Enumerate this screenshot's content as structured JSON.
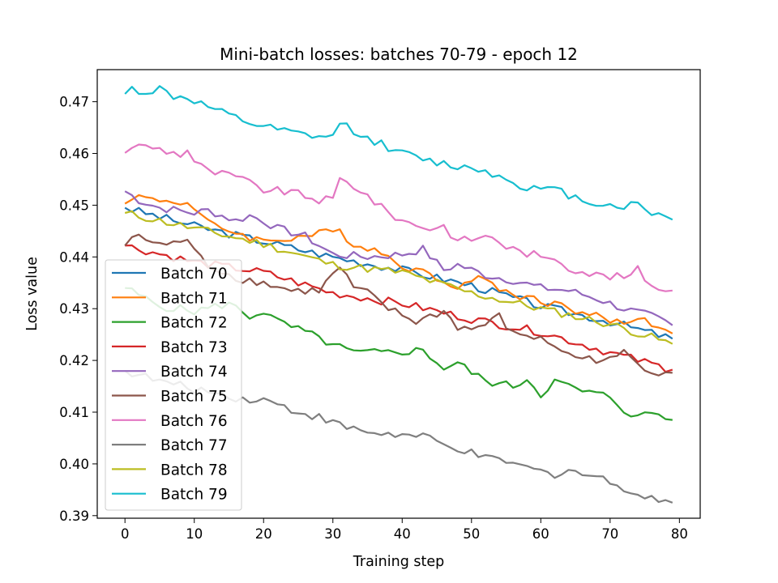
{
  "chart_data": {
    "type": "line",
    "title": "Mini-batch losses: batches 70-79 - epoch 12",
    "xlabel": "Training step",
    "ylabel": "Loss value",
    "xlim": [
      -4,
      83
    ],
    "ylim": [
      0.3895,
      0.4762
    ],
    "xticks": [
      0,
      10,
      20,
      30,
      40,
      50,
      60,
      70,
      80
    ],
    "xtick_labels": [
      "0",
      "10",
      "20",
      "30",
      "40",
      "50",
      "60",
      "70",
      "80"
    ],
    "yticks": [
      0.39,
      0.4,
      0.41,
      0.42,
      0.43,
      0.44,
      0.45,
      0.46,
      0.47
    ],
    "ytick_labels": [
      "0.39",
      "0.40",
      "0.41",
      "0.42",
      "0.43",
      "0.44",
      "0.45",
      "0.46",
      "0.47"
    ],
    "grid": false,
    "legend_position": "lower-left",
    "series": [
      {
        "name": "Batch 70",
        "color": "#1f77b4",
        "x": [
          0,
          10,
          20,
          30,
          40,
          50,
          60,
          70,
          79
        ],
        "y": [
          0.4495,
          0.446,
          0.443,
          0.44,
          0.4375,
          0.4345,
          0.4305,
          0.4275,
          0.4242
        ]
      },
      {
        "name": "Batch 71",
        "color": "#ff7f0e",
        "x": [
          0,
          1,
          5,
          9,
          12,
          20,
          31,
          33,
          36,
          40,
          48,
          52,
          55,
          59,
          63,
          68,
          72,
          74,
          79
        ],
        "y": [
          0.4503,
          0.4518,
          0.451,
          0.4505,
          0.4465,
          0.443,
          0.445,
          0.4425,
          0.4415,
          0.4385,
          0.4345,
          0.436,
          0.433,
          0.432,
          0.4305,
          0.4285,
          0.427,
          0.4285,
          0.4252
        ]
      },
      {
        "name": "Batch 72",
        "color": "#2ca02c",
        "x": [
          0,
          5,
          10,
          15,
          18,
          20,
          22,
          26,
          30,
          33,
          38,
          43,
          46,
          48,
          52,
          56,
          58,
          60,
          62,
          66,
          70,
          72,
          74,
          76,
          79
        ],
        "y": [
          0.434,
          0.4305,
          0.4295,
          0.431,
          0.4285,
          0.4295,
          0.4275,
          0.4255,
          0.423,
          0.4215,
          0.4215,
          0.422,
          0.4185,
          0.4195,
          0.416,
          0.415,
          0.4165,
          0.4135,
          0.416,
          0.414,
          0.413,
          0.4105,
          0.409,
          0.41,
          0.4085
        ]
      },
      {
        "name": "Batch 73",
        "color": "#d62728",
        "x": [
          0,
          10,
          20,
          30,
          40,
          50,
          60,
          70,
          79
        ],
        "y": [
          0.4422,
          0.439,
          0.437,
          0.433,
          0.431,
          0.428,
          0.4255,
          0.4215,
          0.4182
        ]
      },
      {
        "name": "Batch 74",
        "color": "#9467bd",
        "x": [
          0,
          2,
          5,
          10,
          12,
          16,
          18,
          20,
          22,
          26,
          30,
          35,
          40,
          43,
          46,
          48,
          52,
          56,
          60,
          64,
          68,
          70,
          72,
          76,
          79
        ],
        "y": [
          0.4527,
          0.451,
          0.4495,
          0.4485,
          0.449,
          0.447,
          0.448,
          0.447,
          0.4455,
          0.444,
          0.4405,
          0.44,
          0.4405,
          0.4415,
          0.4375,
          0.4385,
          0.4365,
          0.4355,
          0.434,
          0.4335,
          0.432,
          0.431,
          0.43,
          0.4285,
          0.4268
        ]
      },
      {
        "name": "Batch 75",
        "color": "#8c564b",
        "x": [
          0,
          1,
          4,
          6,
          9,
          10,
          12,
          16,
          20,
          24,
          28,
          31,
          33,
          35,
          38,
          42,
          44,
          46,
          48,
          50,
          52,
          54,
          56,
          58,
          60,
          62,
          64,
          66,
          70,
          72,
          74,
          76,
          79
        ],
        "y": [
          0.4422,
          0.444,
          0.443,
          0.4422,
          0.4435,
          0.441,
          0.4385,
          0.436,
          0.435,
          0.4335,
          0.4335,
          0.438,
          0.434,
          0.433,
          0.43,
          0.4275,
          0.4285,
          0.4295,
          0.4265,
          0.426,
          0.427,
          0.4285,
          0.425,
          0.425,
          0.424,
          0.423,
          0.421,
          0.4205,
          0.42,
          0.4215,
          0.4195,
          0.418,
          0.4176
        ]
      },
      {
        "name": "Batch 76",
        "color": "#e377c2",
        "x": [
          0,
          1,
          4,
          8,
          9,
          10,
          12,
          16,
          20,
          24,
          28,
          30,
          31,
          34,
          37,
          40,
          44,
          46,
          48,
          50,
          53,
          55,
          57,
          59,
          60,
          62,
          64,
          68,
          72,
          74,
          76,
          79
        ],
        "y": [
          0.4601,
          0.4615,
          0.4612,
          0.4598,
          0.4608,
          0.4585,
          0.4565,
          0.4555,
          0.453,
          0.4525,
          0.451,
          0.451,
          0.455,
          0.453,
          0.4495,
          0.447,
          0.4455,
          0.446,
          0.443,
          0.4435,
          0.444,
          0.442,
          0.441,
          0.4405,
          0.4395,
          0.44,
          0.438,
          0.4365,
          0.436,
          0.4375,
          0.4345,
          0.4335
        ]
      },
      {
        "name": "Batch 77",
        "color": "#7f7f7f",
        "x": [
          0,
          5,
          10,
          14,
          17,
          20,
          24,
          28,
          32,
          36,
          40,
          44,
          46,
          48,
          50,
          52,
          55,
          57,
          59,
          60,
          62,
          64,
          66,
          68,
          70,
          72,
          74,
          76,
          78,
          79
        ],
        "y": [
          0.418,
          0.416,
          0.4145,
          0.4135,
          0.4125,
          0.4125,
          0.4105,
          0.409,
          0.407,
          0.406,
          0.4055,
          0.405,
          0.4035,
          0.403,
          0.402,
          0.401,
          0.4005,
          0.3995,
          0.399,
          0.3985,
          0.398,
          0.399,
          0.398,
          0.3975,
          0.3965,
          0.3955,
          0.394,
          0.3935,
          0.3923,
          0.3925
        ]
      },
      {
        "name": "Batch 78",
        "color": "#bcbd22",
        "x": [
          0,
          10,
          20,
          30,
          40,
          50,
          60,
          70,
          79
        ],
        "y": [
          0.4485,
          0.4455,
          0.4425,
          0.4385,
          0.437,
          0.433,
          0.43,
          0.427,
          0.4232
        ]
      },
      {
        "name": "Batch 79",
        "color": "#17becf",
        "x": [
          0,
          1,
          3,
          5,
          7,
          9,
          11,
          14,
          18,
          22,
          26,
          30,
          31,
          33,
          35,
          37,
          40,
          44,
          48,
          52,
          54,
          56,
          58,
          60,
          62,
          66,
          70,
          72,
          74,
          76,
          78,
          79
        ],
        "y": [
          0.4715,
          0.4725,
          0.4718,
          0.4725,
          0.471,
          0.4708,
          0.4695,
          0.4678,
          0.4658,
          0.4645,
          0.4635,
          0.463,
          0.4662,
          0.4645,
          0.4628,
          0.4618,
          0.46,
          0.4585,
          0.4575,
          0.4568,
          0.4555,
          0.4545,
          0.4535,
          0.453,
          0.453,
          0.451,
          0.45,
          0.4498,
          0.4503,
          0.4485,
          0.448,
          0.4472
        ]
      }
    ]
  }
}
